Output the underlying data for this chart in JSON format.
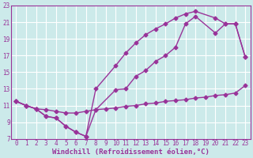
{
  "background_color": "#cceaea",
  "line_color": "#993399",
  "grid_color": "#b8d8d8",
  "xlabel": "Windchill (Refroidissement éolien,°C)",
  "xlim": [
    -0.5,
    23.5
  ],
  "ylim": [
    7,
    23
  ],
  "xticks": [
    0,
    1,
    2,
    3,
    4,
    5,
    6,
    7,
    8,
    9,
    10,
    11,
    12,
    13,
    14,
    15,
    16,
    17,
    18,
    19,
    20,
    21,
    22,
    23
  ],
  "yticks": [
    7,
    9,
    11,
    13,
    15,
    17,
    19,
    21,
    23
  ],
  "line_flat": {
    "x": [
      0,
      1,
      2,
      3,
      4,
      5,
      6,
      7,
      8,
      9,
      10,
      11,
      12,
      13,
      14,
      15,
      16,
      17,
      18,
      19,
      20,
      21,
      22,
      23
    ],
    "y": [
      11.5,
      11.0,
      10.6,
      10.5,
      10.3,
      10.1,
      10.1,
      10.3,
      10.5,
      10.6,
      10.7,
      10.9,
      11.0,
      11.2,
      11.3,
      11.5,
      11.6,
      11.7,
      11.9,
      12.0,
      12.2,
      12.3,
      12.5,
      13.4
    ]
  },
  "line_v": {
    "x": [
      0,
      1,
      2,
      3,
      4,
      5,
      6,
      7,
      8,
      10,
      11,
      12,
      13,
      14,
      15,
      16,
      17,
      18,
      20,
      21,
      22,
      23
    ],
    "y": [
      11.5,
      11.0,
      10.6,
      9.7,
      9.5,
      8.5,
      7.8,
      7.3,
      10.5,
      12.9,
      13.0,
      14.5,
      15.2,
      16.3,
      17.0,
      18.0,
      20.8,
      21.7,
      19.7,
      20.8,
      20.8,
      16.8
    ]
  },
  "line_top": {
    "x": [
      0,
      1,
      2,
      3,
      4,
      5,
      6,
      7,
      8,
      10,
      11,
      12,
      13,
      14,
      15,
      16,
      17,
      18,
      20,
      21,
      22,
      23
    ],
    "y": [
      11.5,
      11.0,
      10.6,
      9.7,
      9.5,
      8.5,
      7.8,
      7.3,
      13.0,
      15.8,
      17.3,
      18.5,
      19.5,
      20.2,
      20.8,
      21.5,
      22.0,
      22.3,
      21.5,
      20.8,
      20.8,
      16.8
    ]
  },
  "marker": "D",
  "markersize": 2.5,
  "linewidth": 1.0,
  "tick_fontsize": 5.5,
  "xlabel_fontsize": 6.5
}
